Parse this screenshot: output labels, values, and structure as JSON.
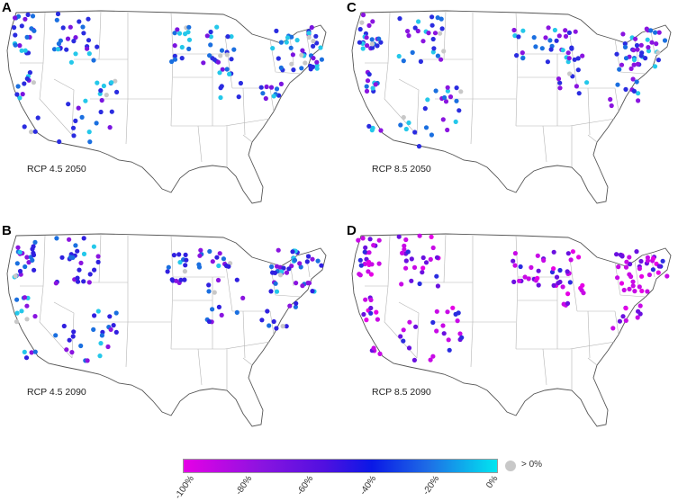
{
  "panels": [
    {
      "letter": "A",
      "caption": "RCP 4.5 2050",
      "palette": "mid"
    },
    {
      "letter": "C",
      "caption": "RCP 8.5 2050",
      "palette": "more"
    },
    {
      "letter": "B",
      "caption": "RCP 4.5 2090",
      "palette": "mid2"
    },
    {
      "letter": "D",
      "caption": "RCP 8.5 2090",
      "palette": "most"
    }
  ],
  "colorbar": {
    "ticks": [
      "-100%",
      "-80%",
      "-60%",
      "-40%",
      "-20%",
      "0%"
    ],
    "gray_label": "> 0%",
    "colors": [
      "#e600e6",
      "#8a14e0",
      "#5010e0",
      "#0a18e6",
      "#1e6de6",
      "#00e6f0"
    ],
    "gray_color": "#c8c8c8"
  }
}
